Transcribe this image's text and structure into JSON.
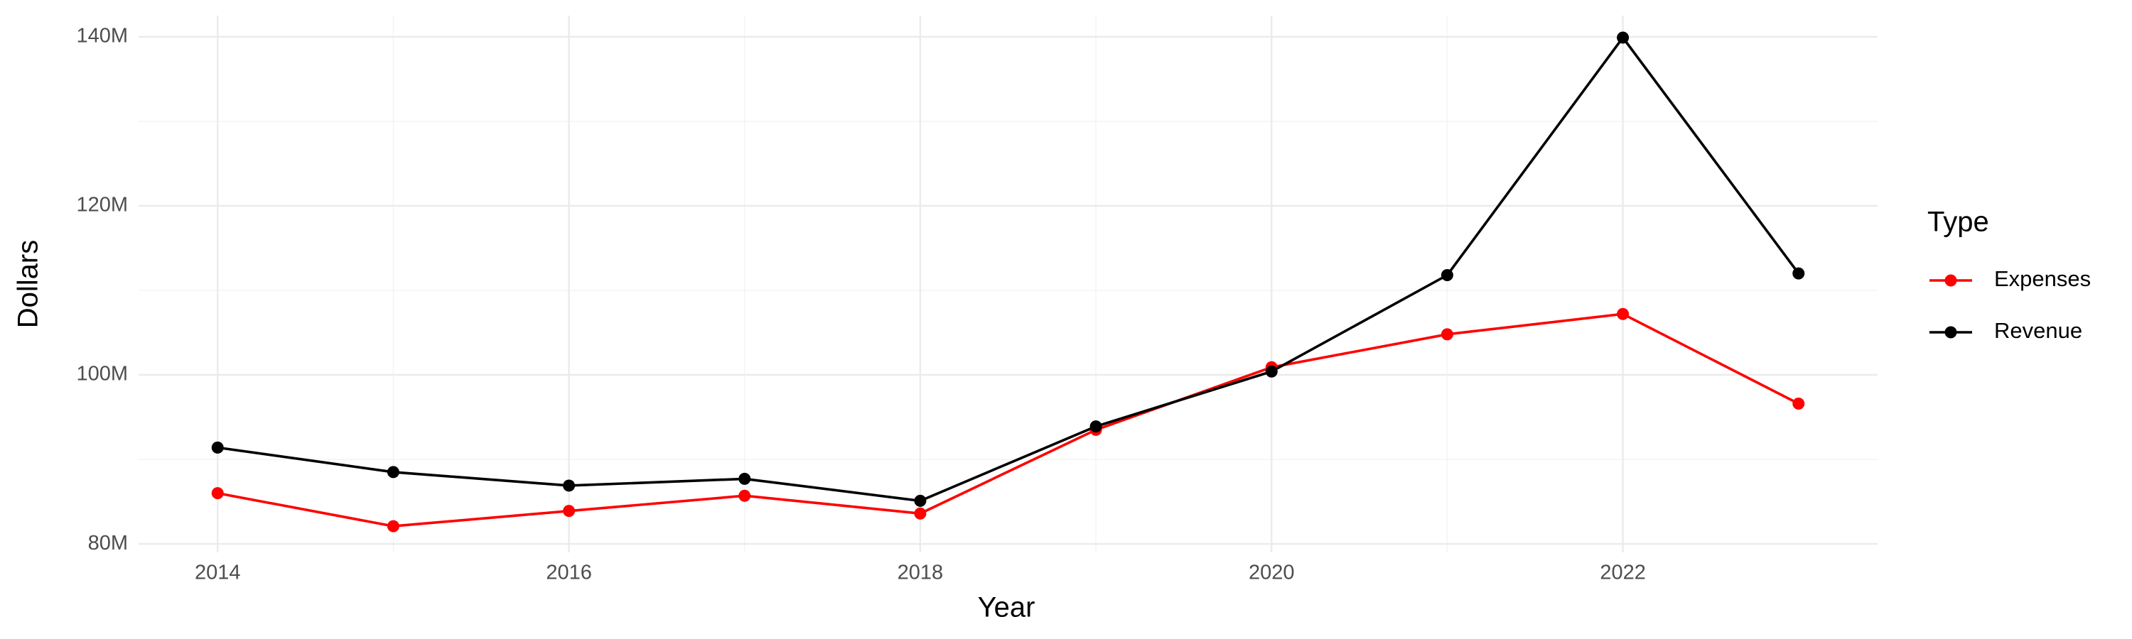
{
  "chart_data": {
    "type": "line",
    "x_label": "Year",
    "y_label": "Dollars",
    "legend_title": "Type",
    "legend_position": "right",
    "grid": true,
    "x": [
      2014,
      2015,
      2016,
      2017,
      2018,
      2019,
      2020,
      2021,
      2022,
      2023
    ],
    "series": [
      {
        "name": "Expenses",
        "color": "#ff0000",
        "values": [
          86000000,
          82100000,
          83900000,
          85700000,
          83600000,
          93500000,
          100900000,
          104800000,
          107200000,
          96600000
        ]
      },
      {
        "name": "Revenue",
        "color": "#000000",
        "values": [
          91400000,
          88500000,
          86900000,
          87700000,
          85100000,
          93900000,
          100400000,
          111800000,
          139900000,
          112000000
        ]
      }
    ],
    "xlim": [
      2013.55,
      2023.45
    ],
    "xticks": [
      2014,
      2016,
      2018,
      2020,
      2022
    ],
    "ylim": [
      79000000,
      142500000
    ],
    "yticks": [
      {
        "value": 80000000,
        "label": "80M"
      },
      {
        "value": 100000000,
        "label": "100M"
      },
      {
        "value": 120000000,
        "label": "120M"
      },
      {
        "value": 140000000,
        "label": "140M"
      }
    ]
  }
}
